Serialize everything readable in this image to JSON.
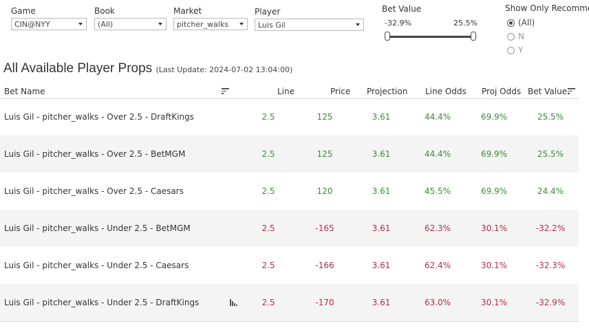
{
  "filters": {
    "game": {
      "label": "Game",
      "value": "CIN@NYY"
    },
    "book": {
      "label": "Book",
      "value": "(All)"
    },
    "market": {
      "label": "Market",
      "value": "pitcher_walks"
    },
    "player": {
      "label": "Player",
      "value": "Luis Gil"
    }
  },
  "bet_value_slider": {
    "label": "Bet Value",
    "min_label": "-32.9%",
    "max_label": "25.5%",
    "min": -32.9,
    "max": 25.5
  },
  "recommended": {
    "label": "Show Only Recommende",
    "options": [
      {
        "label": "(All)",
        "selected": true
      },
      {
        "label": "N",
        "selected": false
      },
      {
        "label": "Y",
        "selected": false
      }
    ]
  },
  "title": "All Available Player Props",
  "subtitle": "(Last Update: 2024-07-02 13:04:00)",
  "columns": {
    "bet_name": "Bet Name",
    "line": "Line",
    "price": "Price",
    "projection": "Projection",
    "line_odds": "Line Odds",
    "proj_odds": "Proj Odds",
    "bet_value": "Bet Value"
  },
  "rows": [
    {
      "name": "Luis Gil - pitcher_walks - Over 2.5 - DraftKings",
      "line": "2.5",
      "price": "125",
      "projection": "3.61",
      "line_odds": "44.4%",
      "proj_odds": "69.9%",
      "bet_value": "25.5%",
      "positive": true
    },
    {
      "name": "Luis Gil - pitcher_walks - Over 2.5 - BetMGM",
      "line": "2.5",
      "price": "125",
      "projection": "3.61",
      "line_odds": "44.4%",
      "proj_odds": "69.9%",
      "bet_value": "25.5%",
      "positive": true
    },
    {
      "name": "Luis Gil - pitcher_walks - Over 2.5 - Caesars",
      "line": "2.5",
      "price": "120",
      "projection": "3.61",
      "line_odds": "45.5%",
      "proj_odds": "69.9%",
      "bet_value": "24.4%",
      "positive": true
    },
    {
      "name": "Luis Gil - pitcher_walks - Under 2.5 - BetMGM",
      "line": "2.5",
      "price": "-165",
      "projection": "3.61",
      "line_odds": "62.3%",
      "proj_odds": "30.1%",
      "bet_value": "-32.2%",
      "positive": false
    },
    {
      "name": "Luis Gil - pitcher_walks - Under 2.5 - Caesars",
      "line": "2.5",
      "price": "-166",
      "projection": "3.61",
      "line_odds": "62.4%",
      "proj_odds": "30.1%",
      "bet_value": "-32.3%",
      "positive": false
    },
    {
      "name": "Luis Gil - pitcher_walks - Under 2.5 - DraftKings",
      "line": "2.5",
      "price": "-170",
      "projection": "3.61",
      "line_odds": "63.0%",
      "proj_odds": "30.1%",
      "bet_value": "-32.9%",
      "positive": false
    }
  ],
  "colors": {
    "positive": "#3d8a3d",
    "negative": "#b52b4a"
  }
}
